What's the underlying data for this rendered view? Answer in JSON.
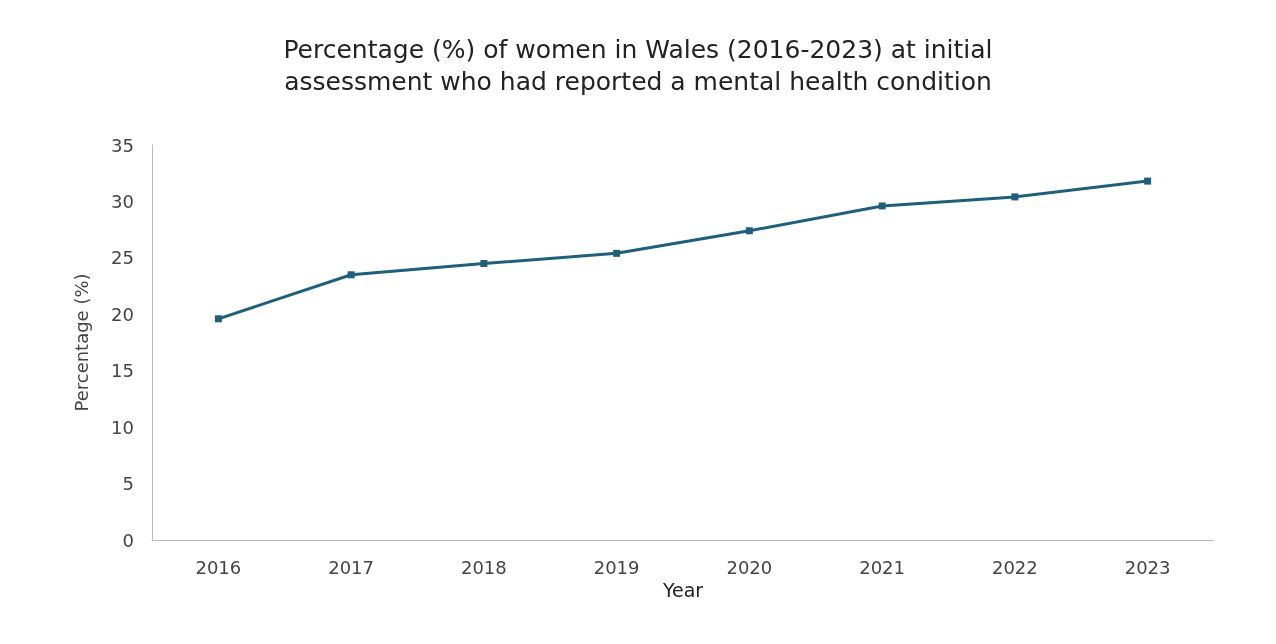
{
  "chart_data": {
    "type": "line",
    "title": "Percentage (%) of women in Wales (2016-2023) at initial\nassessment who had reported a mental health condition",
    "xlabel": "Year",
    "ylabel": "Percentage (%)",
    "categories": [
      "2016",
      "2017",
      "2018",
      "2019",
      "2020",
      "2021",
      "2022",
      "2023"
    ],
    "series": [
      {
        "color": "#1f5f7a",
        "values": [
          19.6,
          23.5,
          24.5,
          25.4,
          27.4,
          29.6,
          30.4,
          31.8
        ]
      }
    ],
    "ylim": [
      0,
      35
    ],
    "yticks": [
      0,
      5,
      10,
      15,
      20,
      25,
      30,
      35
    ],
    "grid": false,
    "marker": "square",
    "line_style": "solid"
  }
}
